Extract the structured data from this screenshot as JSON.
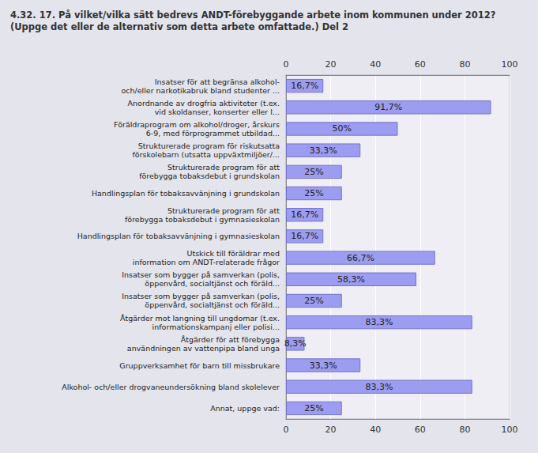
{
  "chart_data": {
    "type": "bar",
    "title": "4.32. 17. På vilket/vilka sätt bedrevs ANDT-förebyggande arbete inom kommunen under 2012? (Uppge det eller de alternativ som detta arbete omfattade.) Del 2",
    "orientation": "horizontal",
    "categories": [
      "Insatser för att begränsa alkohol-\noch/eller narkotikabruk bland studenter ...",
      "Anordnande av drogfria aktiviteter (t.ex.\nvid skoldanser, konserter eller l...",
      "Föräldraprogram om alkohol/droger, årskurs\n6-9, med förprogrammet utbildad...",
      "Strukturerade program för riskutsatta\nförskolebarn (utsatta uppväxtmiljöer/...",
      "Strukturerade program för att\nförebygga tobaksdebut i grundskolan",
      "Handlingsplan för tobaksavvänjning i grundskolan",
      "Strukturerade program för att\nförebygga tobaksdebut i gymnasieskolan",
      "Handlingsplan för tobaksavvänjning i gymnasieskolan",
      "Utskick till föräldrar med\ninformation om ANDT-relaterade frågor",
      "Insatser som bygger på samverkan (polis,\nöppenvård, socialtjänst och föräld...",
      "Insatser som bygger på samverkan (polis,\nöppenvård, socialtjänst och föräld...",
      "Åtgärder mot langning till ungdomar (t.ex.\ninformationskampanj eller polisi...",
      "Åtgärder för att förebygga\nanvändningen av vattenpipa bland unga",
      "Gruppverksamhet för barn till missbrukare",
      "Alkohol- och/eller drogvaneundersökning bland skolelever",
      "Annat, uppge vad:"
    ],
    "values": [
      16.7,
      91.7,
      50,
      33.3,
      25,
      25,
      16.7,
      16.7,
      66.7,
      58.3,
      25,
      83.3,
      8.3,
      33.3,
      83.3,
      25
    ],
    "value_labels": [
      "16,7%",
      "91,7%",
      "50%",
      "33,3%",
      "25%",
      "25%",
      "16,7%",
      "16,7%",
      "66,7%",
      "58,3%",
      "25%",
      "83,3%",
      "8,3%",
      "33,3%",
      "83,3%",
      "25%"
    ],
    "color": "#9c9cf0",
    "xlim": [
      0,
      100
    ],
    "xticks": [
      0,
      20,
      40,
      60,
      80,
      100
    ],
    "grid": true,
    "data_labels": true
  }
}
